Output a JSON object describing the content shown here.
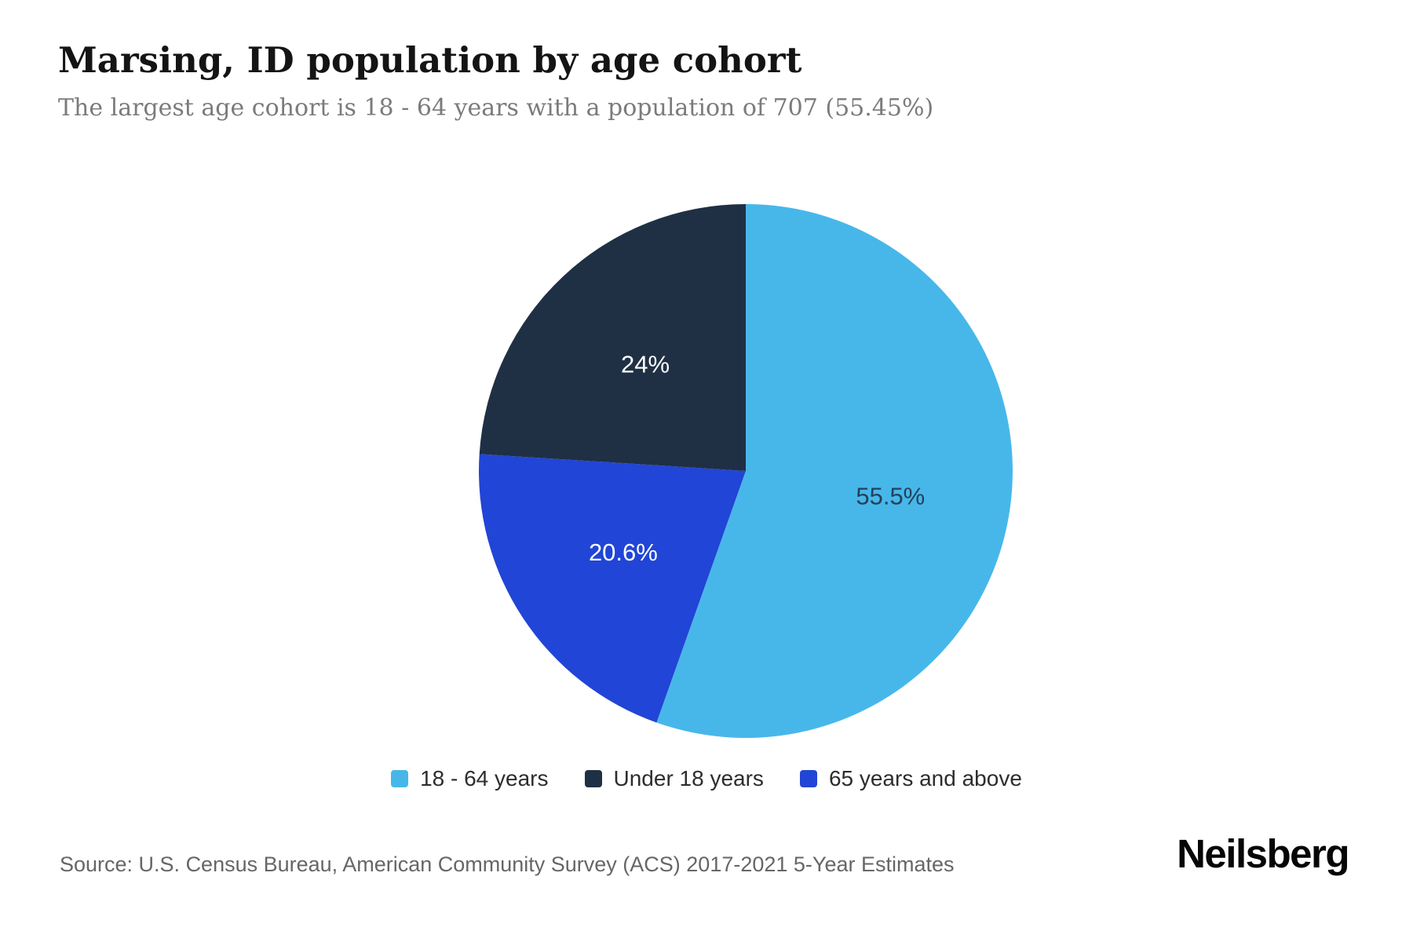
{
  "header": {
    "title": "Marsing, ID population by age cohort",
    "subtitle": "The largest age cohort is 18 - 64 years with a population of 707 (55.45%)"
  },
  "chart_data": {
    "type": "pie",
    "title": "Marsing, ID population by age cohort",
    "start_angle_deg_from_top": 0,
    "direction": "clockwise",
    "legend_position": "bottom",
    "slices": [
      {
        "label": "18 - 64 years",
        "value": 55.45,
        "display": "55.5%",
        "color": "#47b7ea",
        "label_color": "#234158"
      },
      {
        "label": "Under 18 years",
        "value": 24.0,
        "display": "24%",
        "color": "#1f3044",
        "label_color": "#ffffff"
      },
      {
        "label": "65 years and above",
        "value": 20.6,
        "display": "20.6%",
        "color": "#2145d6",
        "label_color": "#ffffff"
      }
    ],
    "draw_order_clockwise_from_top": [
      0,
      2,
      1
    ],
    "label_radius_fraction": 0.55
  },
  "footer": {
    "source": "Source: U.S. Census Bureau, American Community Survey (ACS) 2017-2021 5-Year Estimates",
    "brand": "Neilsberg"
  }
}
